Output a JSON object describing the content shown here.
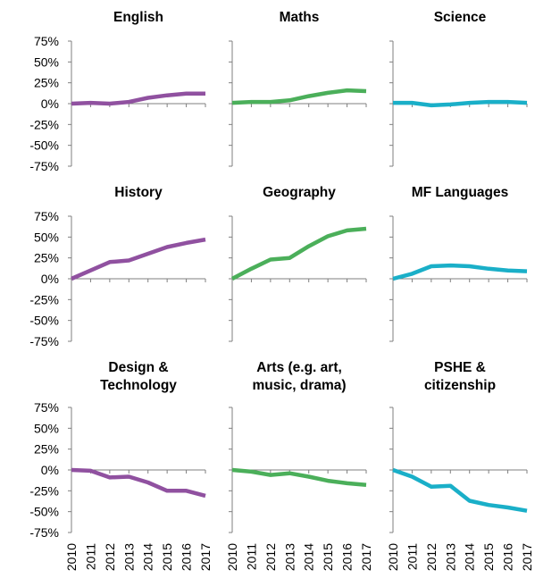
{
  "colors": {
    "purple": "#9051A0",
    "green": "#4BAF5A",
    "cyan": "#1AAFC8",
    "axis": "#7F7F7F",
    "text": "#000000"
  },
  "y_tick_labels": [
    "75%",
    "50%",
    "25%",
    "0%",
    "-25%",
    "-50%",
    "-75%"
  ],
  "x_tick_labels": [
    "2010",
    "2011",
    "2012",
    "2013",
    "2014",
    "2015",
    "2016",
    "2017"
  ],
  "chart_data": [
    {
      "type": "line",
      "title": "English",
      "title_lines": [
        "English"
      ],
      "x": [
        2010,
        2011,
        2012,
        2013,
        2014,
        2015,
        2016,
        2017
      ],
      "values": [
        0,
        1,
        0,
        2,
        7,
        10,
        12,
        12
      ],
      "ylim": [
        -75,
        75
      ],
      "color": "purple",
      "grid": false
    },
    {
      "type": "line",
      "title": "Maths",
      "title_lines": [
        "Maths"
      ],
      "x": [
        2010,
        2011,
        2012,
        2013,
        2014,
        2015,
        2016,
        2017
      ],
      "values": [
        1,
        2,
        2,
        4,
        9,
        13,
        16,
        15
      ],
      "ylim": [
        -75,
        75
      ],
      "color": "green",
      "grid": false
    },
    {
      "type": "line",
      "title": "Science",
      "title_lines": [
        "Science"
      ],
      "x": [
        2010,
        2011,
        2012,
        2013,
        2014,
        2015,
        2016,
        2017
      ],
      "values": [
        1,
        1,
        -2,
        -1,
        1,
        2,
        2,
        1
      ],
      "ylim": [
        -75,
        75
      ],
      "color": "cyan",
      "grid": false
    },
    {
      "type": "line",
      "title": "History",
      "title_lines": [
        "History"
      ],
      "x": [
        2010,
        2011,
        2012,
        2013,
        2014,
        2015,
        2016,
        2017
      ],
      "values": [
        0,
        10,
        20,
        22,
        30,
        38,
        43,
        47
      ],
      "ylim": [
        -75,
        75
      ],
      "color": "purple",
      "grid": false
    },
    {
      "type": "line",
      "title": "Geography",
      "title_lines": [
        "Geography"
      ],
      "x": [
        2010,
        2011,
        2012,
        2013,
        2014,
        2015,
        2016,
        2017
      ],
      "values": [
        0,
        12,
        23,
        25,
        39,
        51,
        58,
        60
      ],
      "ylim": [
        -75,
        75
      ],
      "color": "green",
      "grid": false
    },
    {
      "type": "line",
      "title": "MF Languages",
      "title_lines": [
        "MF Languages"
      ],
      "x": [
        2010,
        2011,
        2012,
        2013,
        2014,
        2015,
        2016,
        2017
      ],
      "values": [
        0,
        6,
        15,
        16,
        15,
        12,
        10,
        9
      ],
      "ylim": [
        -75,
        75
      ],
      "color": "cyan",
      "grid": false
    },
    {
      "type": "line",
      "title": "Design & Technology",
      "title_lines": [
        "Design &",
        "Technology"
      ],
      "x": [
        2010,
        2011,
        2012,
        2013,
        2014,
        2015,
        2016,
        2017
      ],
      "values": [
        0,
        -1,
        -9,
        -8,
        -15,
        -25,
        -25,
        -31
      ],
      "ylim": [
        -75,
        75
      ],
      "color": "purple",
      "grid": false
    },
    {
      "type": "line",
      "title": "Arts (e.g. art, music, drama)",
      "title_lines": [
        "Arts (e.g. art,",
        "music, drama)"
      ],
      "x": [
        2010,
        2011,
        2012,
        2013,
        2014,
        2015,
        2016,
        2017
      ],
      "values": [
        0,
        -2,
        -6,
        -4,
        -8,
        -13,
        -16,
        -18
      ],
      "ylim": [
        -75,
        75
      ],
      "color": "green",
      "grid": false
    },
    {
      "type": "line",
      "title": "PSHE & citizenship",
      "title_lines": [
        "PSHE &",
        "citizenship"
      ],
      "x": [
        2010,
        2011,
        2012,
        2013,
        2014,
        2015,
        2016,
        2017
      ],
      "values": [
        0,
        -8,
        -20,
        -19,
        -37,
        -42,
        -45,
        -49
      ],
      "ylim": [
        -75,
        75
      ],
      "color": "cyan",
      "grid": false
    }
  ]
}
